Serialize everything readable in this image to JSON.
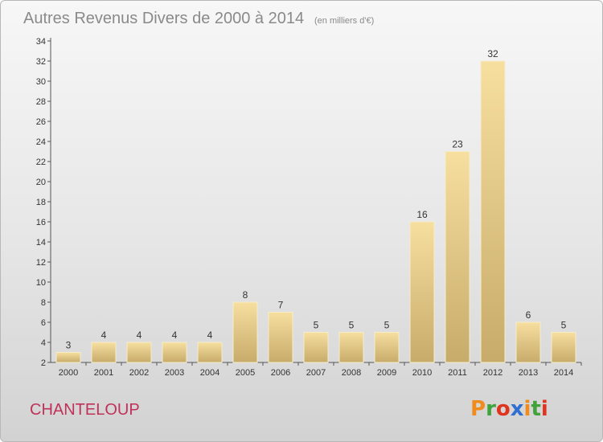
{
  "chart_data": {
    "type": "bar",
    "title": "Autres Revenus Divers de 2000 à 2014",
    "subtitle": "(en milliers d'€)",
    "categories": [
      "2000",
      "2001",
      "2002",
      "2003",
      "2004",
      "2005",
      "2006",
      "2007",
      "2008",
      "2009",
      "2010",
      "2011",
      "2012",
      "2013",
      "2014"
    ],
    "values": [
      3,
      4,
      4,
      4,
      4,
      8,
      7,
      5,
      5,
      5,
      16,
      23,
      32,
      6,
      5
    ],
    "ylim": [
      2,
      34
    ],
    "yticks": [
      2,
      4,
      6,
      8,
      10,
      12,
      14,
      16,
      18,
      20,
      22,
      24,
      26,
      28,
      30,
      32,
      34
    ],
    "grid": false,
    "bar_color": "#e6cc82"
  },
  "footer": {
    "commune": "CHANTELOUP",
    "logo_text": "Proxiti",
    "logo_colors": [
      "#f08c1e",
      "#3fa23a",
      "#e0341f",
      "#2f6fd1",
      "#f08c1e",
      "#3fa23a",
      "#e0341f"
    ]
  }
}
